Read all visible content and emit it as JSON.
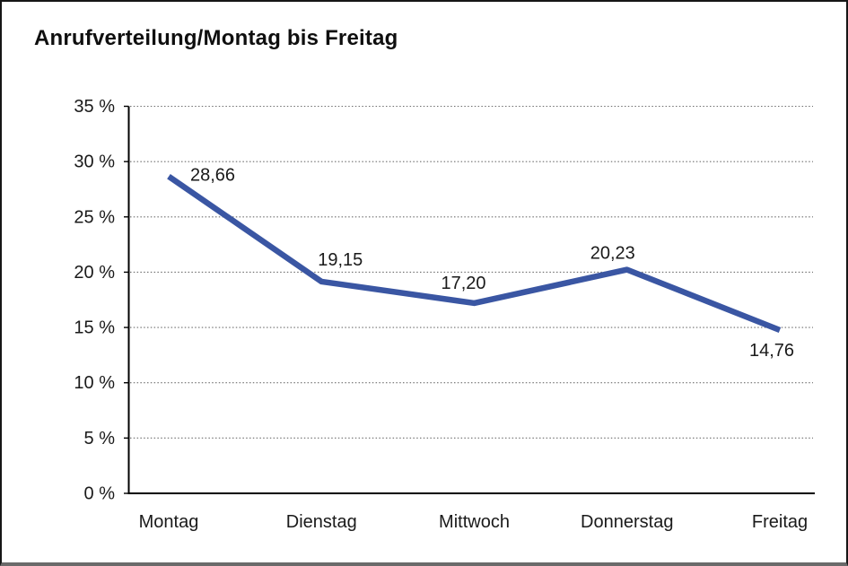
{
  "chart": {
    "title": "Anrufverteilung/Montag bis Freitag"
  },
  "chart_data": {
    "type": "line",
    "title": "Anrufverteilung/Montag bis Freitag",
    "categories": [
      "Montag",
      "Dienstag",
      "Mittwoch",
      "Donnerstag",
      "Freitag"
    ],
    "series": [
      {
        "name": "Anrufverteilung",
        "values": [
          28.66,
          19.15,
          17.2,
          20.23,
          14.76
        ]
      }
    ],
    "value_labels": [
      "28,66",
      "19,15",
      "17,20",
      "20,23",
      "14,76"
    ],
    "y_ticks": [
      {
        "value": 0,
        "label": "0 %"
      },
      {
        "value": 5,
        "label": "5 %"
      },
      {
        "value": 10,
        "label": "10 %"
      },
      {
        "value": 15,
        "label": "15 %"
      },
      {
        "value": 20,
        "label": "20 %"
      },
      {
        "value": 25,
        "label": "25 %"
      },
      {
        "value": 30,
        "label": "30 %"
      },
      {
        "value": 35,
        "label": "35 %"
      }
    ],
    "ylim": [
      0,
      35
    ],
    "xlabel": "",
    "ylabel": "",
    "grid": "horizontal-dotted",
    "legend": "none",
    "line_color": "#3A56A3",
    "axis_color": "#000000",
    "grid_color": "#6e6e6e",
    "text_color": "#1a1a1a"
  }
}
